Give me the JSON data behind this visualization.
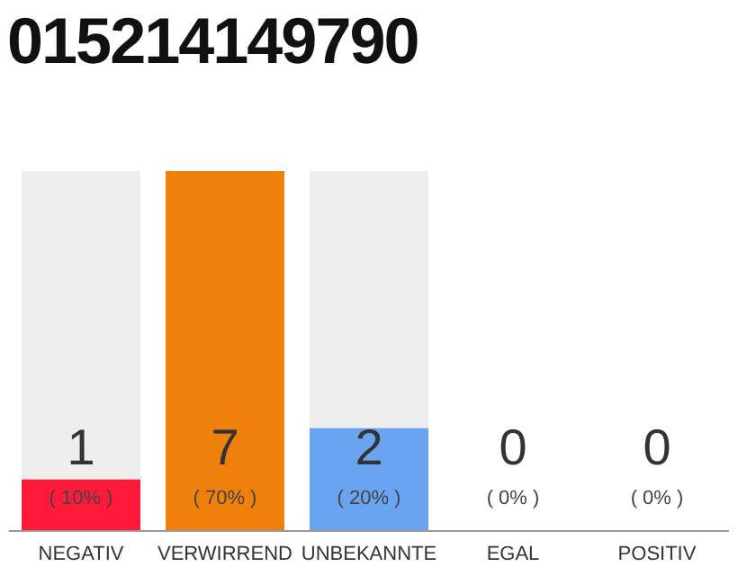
{
  "chart_data": {
    "type": "bar",
    "title": "015214149790",
    "categories": [
      "NEGATIV",
      "VERWIRREND",
      "UNBEKANNTE",
      "EGAL",
      "POSITIV"
    ],
    "values": [
      1,
      7,
      2,
      0,
      0
    ],
    "colors": [
      "#ff1a3c",
      "#f0800c",
      "#6aa3ef",
      "#cccccc",
      "#cccccc"
    ],
    "data_labels": true,
    "annotations": [
      "( 10% )",
      "( 70% )",
      "( 20% )",
      "( 0% )",
      "( 0% )"
    ]
  }
}
